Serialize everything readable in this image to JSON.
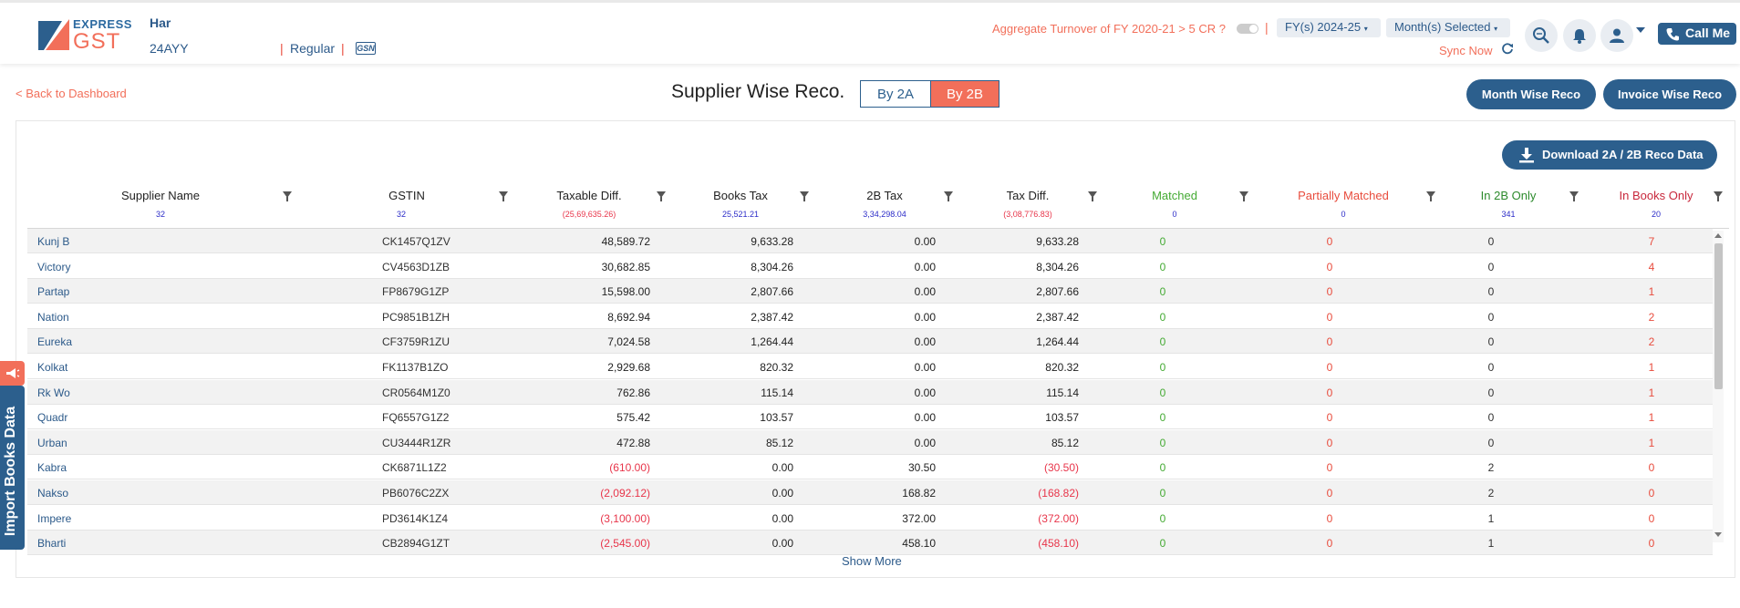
{
  "header": {
    "logo_top": "EXPRESS",
    "logo_bottom": "GST",
    "user_name": "Har",
    "user_gstin": "24AYY",
    "reg_type": "Regular",
    "gsn_label": "GSN",
    "aggregate_text": "Aggregate Turnover of FY 2020-21 > 5 CR ?",
    "fy_dropdown": "FY(s) 2024-25",
    "month_dropdown": "Month(s) Selected",
    "sync_label": "Sync Now",
    "call_me": "Call Me"
  },
  "subheader": {
    "back_link": "< Back to Dashboard",
    "title": "Supplier Wise Reco.",
    "tab_2a": "By 2A",
    "tab_2b": "By 2B",
    "month_wise": "Month Wise Reco",
    "invoice_wise": "Invoice Wise Reco"
  },
  "download_label": "Download 2A / 2B Reco Data",
  "columns": [
    {
      "label": "Supplier Name",
      "count": "32"
    },
    {
      "label": "GSTIN",
      "count": "32"
    },
    {
      "label": "Taxable Diff.",
      "count": "(25,69,635.26)"
    },
    {
      "label": "Books Tax",
      "count": "25,521.21"
    },
    {
      "label": "2B Tax",
      "count": "3,34,298.04"
    },
    {
      "label": "Tax Diff.",
      "count": "(3,08,776.83)"
    },
    {
      "label": "Matched",
      "count": "0"
    },
    {
      "label": "Partially Matched",
      "count": "0"
    },
    {
      "label": "In 2B Only",
      "count": "341"
    },
    {
      "label": "In Books Only",
      "count": "20"
    }
  ],
  "rows": [
    {
      "name": "Kunj B",
      "gstin": "CK1457Q1ZV",
      "taxable": "48,589.72",
      "books": "9,633.28",
      "twob": "0.00",
      "taxdiff": "9,633.28",
      "matched": "0",
      "partial": "0",
      "in2b": "0",
      "inbooks": "7"
    },
    {
      "name": "Victory",
      "gstin": "CV4563D1ZB",
      "taxable": "30,682.85",
      "books": "8,304.26",
      "twob": "0.00",
      "taxdiff": "8,304.26",
      "matched": "0",
      "partial": "0",
      "in2b": "0",
      "inbooks": "4"
    },
    {
      "name": "Partap",
      "gstin": "FP8679G1ZP",
      "taxable": "15,598.00",
      "books": "2,807.66",
      "twob": "0.00",
      "taxdiff": "2,807.66",
      "matched": "0",
      "partial": "0",
      "in2b": "0",
      "inbooks": "1"
    },
    {
      "name": "Nation",
      "gstin": "PC9851B1ZH",
      "taxable": "8,692.94",
      "books": "2,387.42",
      "twob": "0.00",
      "taxdiff": "2,387.42",
      "matched": "0",
      "partial": "0",
      "in2b": "0",
      "inbooks": "2"
    },
    {
      "name": "Eureka",
      "gstin": "CF3759R1ZU",
      "taxable": "7,024.58",
      "books": "1,264.44",
      "twob": "0.00",
      "taxdiff": "1,264.44",
      "matched": "0",
      "partial": "0",
      "in2b": "0",
      "inbooks": "2"
    },
    {
      "name": "Kolkat",
      "gstin": "FK1137B1ZO",
      "taxable": "2,929.68",
      "books": "820.32",
      "twob": "0.00",
      "taxdiff": "820.32",
      "matched": "0",
      "partial": "0",
      "in2b": "0",
      "inbooks": "1"
    },
    {
      "name": "Rk Wo",
      "gstin": "CR0564M1Z0",
      "taxable": "762.86",
      "books": "115.14",
      "twob": "0.00",
      "taxdiff": "115.14",
      "matched": "0",
      "partial": "0",
      "in2b": "0",
      "inbooks": "1"
    },
    {
      "name": "Quadr",
      "gstin": "FQ6557G1Z2",
      "taxable": "575.42",
      "books": "103.57",
      "twob": "0.00",
      "taxdiff": "103.57",
      "matched": "0",
      "partial": "0",
      "in2b": "0",
      "inbooks": "1"
    },
    {
      "name": "Urban",
      "gstin": "CU3444R1ZR",
      "taxable": "472.88",
      "books": "85.12",
      "twob": "0.00",
      "taxdiff": "85.12",
      "matched": "0",
      "partial": "0",
      "in2b": "0",
      "inbooks": "1"
    },
    {
      "name": "Kabra",
      "gstin": "CK6871L1Z2",
      "taxable": "(610.00)",
      "books": "0.00",
      "twob": "30.50",
      "taxdiff": "(30.50)",
      "matched": "0",
      "partial": "0",
      "in2b": "2",
      "inbooks": "0"
    },
    {
      "name": "Nakso",
      "gstin": "PB6076C2ZX",
      "taxable": "(2,092.12)",
      "books": "0.00",
      "twob": "168.82",
      "taxdiff": "(168.82)",
      "matched": "0",
      "partial": "0",
      "in2b": "2",
      "inbooks": "0"
    },
    {
      "name": "Impere",
      "gstin": "PD3614K1Z4",
      "taxable": "(3,100.00)",
      "books": "0.00",
      "twob": "372.00",
      "taxdiff": "(372.00)",
      "matched": "0",
      "partial": "0",
      "in2b": "1",
      "inbooks": "0"
    },
    {
      "name": "Bharti",
      "gstin": "CB2894G1ZT",
      "taxable": "(2,545.00)",
      "books": "0.00",
      "twob": "458.10",
      "taxdiff": "(458.10)",
      "matched": "0",
      "partial": "0",
      "in2b": "1",
      "inbooks": "0"
    }
  ],
  "show_more": "Show More",
  "side_tab_label": "Import Books Data",
  "colors": {
    "brand_blue": "#2c5f8d",
    "brand_coral": "#f26f5a",
    "matched_green": "#44aa33",
    "negative_red": "#e8354a"
  },
  "icons": [
    "search-icon",
    "bell-icon",
    "user-icon",
    "phone-icon",
    "sync-icon",
    "download-icon",
    "filter-icon",
    "megaphone-icon"
  ]
}
